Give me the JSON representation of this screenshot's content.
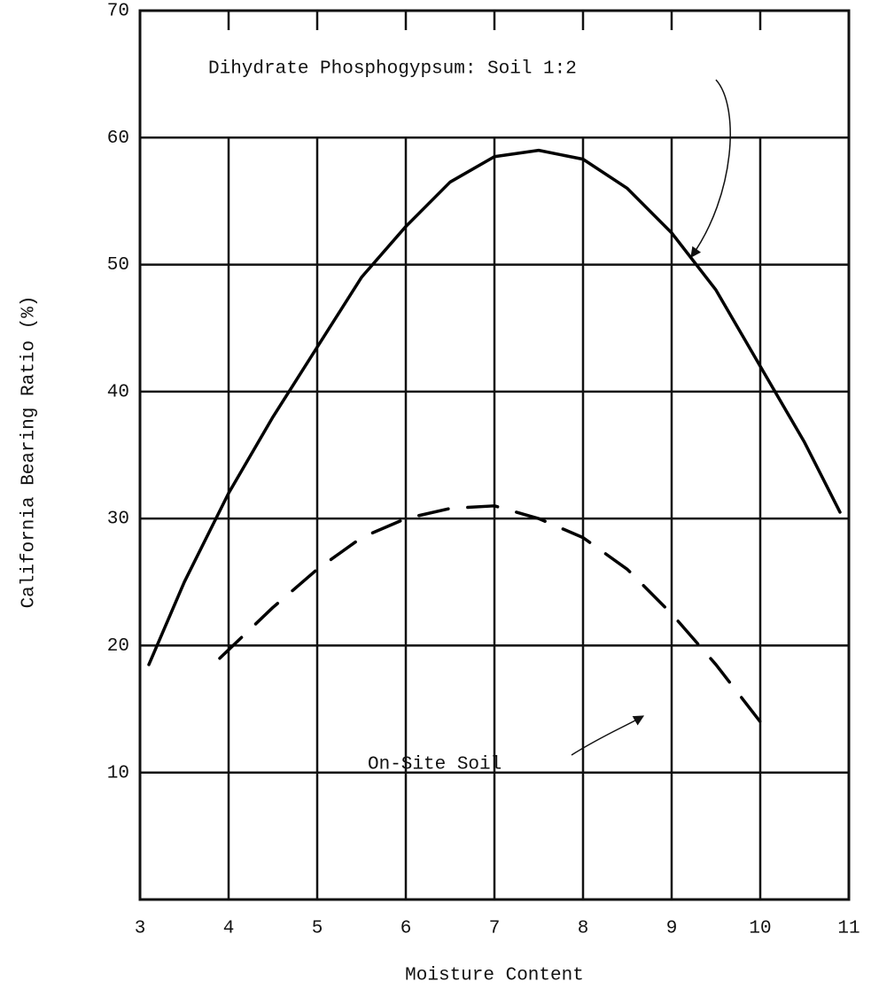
{
  "chart_data": {
    "type": "line",
    "xlabel": "Moisture Content",
    "ylabel": "California Bearing Ratio (%)",
    "xlim": [
      3,
      11
    ],
    "ylim": [
      0,
      70
    ],
    "xticks": [
      3,
      4,
      5,
      6,
      7,
      8,
      9,
      10,
      11
    ],
    "yticks": [
      10,
      20,
      30,
      40,
      50,
      60,
      70
    ],
    "grid": true,
    "series": [
      {
        "name": "Dihydrate Phosphogypsum:  Soil 1:2",
        "color": "#000000",
        "style": "solid",
        "x": [
          3.1,
          3.5,
          4,
          4.5,
          5,
          5.5,
          6,
          6.5,
          7,
          7.5,
          8,
          8.5,
          9,
          9.5,
          10,
          10.5,
          10.9
        ],
        "values": [
          18.5,
          25,
          32,
          38,
          43.5,
          49,
          53,
          56.5,
          58.5,
          59,
          58.3,
          56,
          52.5,
          48,
          42,
          36,
          30.5
        ]
      },
      {
        "name": "On-Site Soil",
        "color": "#000000",
        "style": "dashed",
        "x": [
          3.9,
          4.5,
          5,
          5.5,
          6,
          6.5,
          7,
          7.5,
          8,
          8.5,
          9,
          9.5,
          10
        ],
        "values": [
          19,
          23,
          26,
          28.5,
          30,
          30.8,
          31,
          30,
          28.5,
          26,
          22.5,
          18.5,
          14
        ]
      }
    ]
  }
}
